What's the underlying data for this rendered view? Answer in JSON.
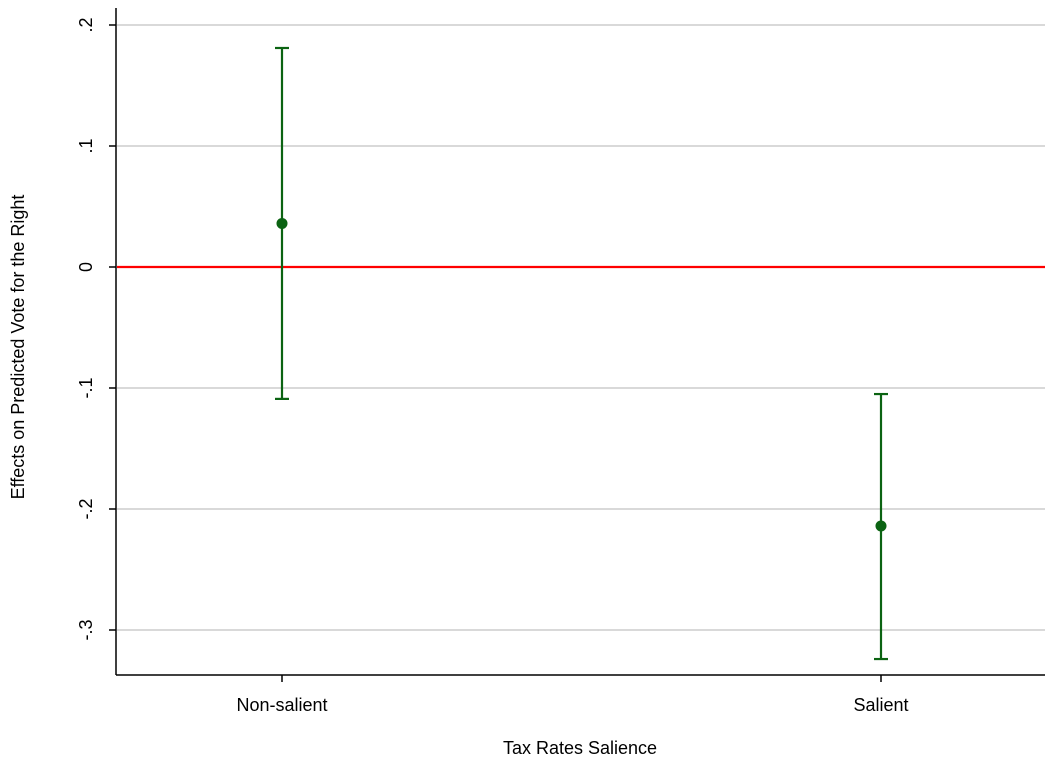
{
  "chart_data": {
    "type": "scatter",
    "xlabel": "Tax Rates Salience",
    "ylabel": "Effects on Predicted Vote for the Right",
    "categories": [
      "Non-salient",
      "Salient"
    ],
    "series": [
      {
        "points": [
          {
            "category": "Non-salient",
            "estimate": 0.036,
            "ci_low": -0.109,
            "ci_high": 0.181
          },
          {
            "category": "Salient",
            "estimate": -0.214,
            "ci_low": -0.324,
            "ci_high": -0.105
          }
        ]
      }
    ],
    "ylim": [
      -0.34,
      0.21
    ],
    "y_ticks": [
      {
        "value": 0.2,
        "label": ".2"
      },
      {
        "value": 0.1,
        "label": ".1"
      },
      {
        "value": 0,
        "label": "0"
      },
      {
        "value": -0.1,
        "label": "-.1"
      },
      {
        "value": -0.2,
        "label": "-.2"
      },
      {
        "value": -0.3,
        "label": "-.3"
      }
    ],
    "reference_line": {
      "y": 0,
      "color": "#ff0000"
    },
    "marker_color": "#0b6312",
    "grid": true,
    "grid_color": "#d9d9d9",
    "legend": "none"
  }
}
